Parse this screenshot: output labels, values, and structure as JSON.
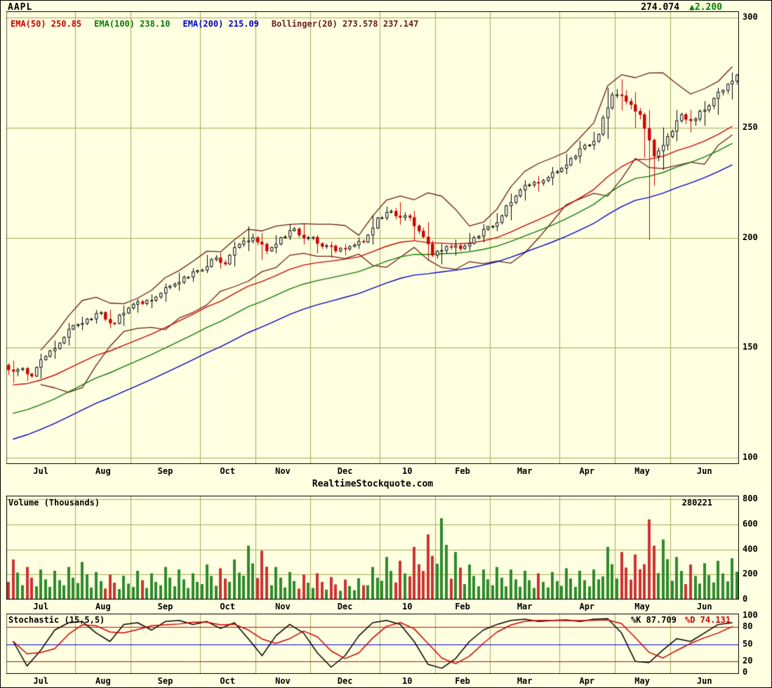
{
  "header": {
    "symbol": "AAPL",
    "price": "274.074",
    "change": "▲2.200"
  },
  "legend": [
    {
      "label": "EMA(50) 250.85",
      "color": "#cc0000"
    },
    {
      "label": "EMA(100) 238.10",
      "color": "#0b7a0b"
    },
    {
      "label": "EMA(200) 215.09",
      "color": "#0000cc"
    },
    {
      "label": "Bollinger(20) 273.578 237.147",
      "color": "#6a1b1b"
    }
  ],
  "watermark": "RealtimeStockquote.com",
  "volume_panel": {
    "title": "Volume (Thousands)",
    "current": "280221"
  },
  "stoch_panel": {
    "title": "Stochastic (15,5,5)",
    "k_label": "%K 87.709",
    "d_label": "%D 74.131"
  },
  "colors": {
    "background": "#ffffe1",
    "grid": "#a8a85c",
    "panel_border": "#000000",
    "candle_up_fill": "#ffffff",
    "candle_up_stroke": "#000000",
    "candle_down": "#cc0000",
    "volume_up": "#2e8b2e",
    "volume_down": "#cc3333",
    "ema50": "#cc0000",
    "ema100": "#0b7a0b",
    "ema200": "#0000cc",
    "bollinger": "#6a1b1b",
    "stoch_k": "#000000",
    "stoch_d": "#cc0000",
    "stoch_mid": "#0000cc",
    "stoch_bands": "#cc0000",
    "change_up": "#008000"
  },
  "chart_data": {
    "type": "candlestick",
    "symbol": "AAPL",
    "last_price": 274.074,
    "change": 2.2,
    "months": [
      "Jul",
      "Aug",
      "Sep",
      "Oct",
      "Nov",
      "Dec",
      "10",
      "Feb",
      "Mar",
      "Apr",
      "May",
      "Jun"
    ],
    "weeks_per_month": [
      5,
      4,
      5,
      4,
      4,
      5,
      4,
      4,
      5,
      4,
      4,
      5
    ],
    "price_axis_range": [
      100,
      300
    ],
    "price_ticks": [
      300,
      250,
      200,
      150,
      100
    ],
    "candles_ohlc_weekly": [
      [
        142,
        144,
        134,
        140
      ],
      [
        140,
        141,
        135,
        137
      ],
      [
        137,
        147,
        136,
        146
      ],
      [
        146,
        153,
        145,
        152
      ],
      [
        152,
        161,
        151,
        160
      ],
      [
        160,
        164,
        158,
        163
      ],
      [
        163,
        167,
        161,
        166
      ],
      [
        166,
        167,
        159,
        161
      ],
      [
        161,
        169,
        160,
        168
      ],
      [
        168,
        172,
        166,
        170
      ],
      [
        170,
        174,
        168,
        173
      ],
      [
        173,
        179,
        171,
        178
      ],
      [
        178,
        184,
        176,
        182
      ],
      [
        182,
        186,
        180,
        185
      ],
      [
        185,
        192,
        184,
        190
      ],
      [
        190,
        193,
        186,
        188
      ],
      [
        188,
        198,
        187,
        197
      ],
      [
        197,
        205,
        194,
        200
      ],
      [
        200,
        202,
        190,
        194
      ],
      [
        194,
        201,
        193,
        200
      ],
      [
        200,
        206,
        199,
        204
      ],
      [
        204,
        206,
        197,
        200
      ],
      [
        200,
        201,
        193,
        196
      ],
      [
        196,
        198,
        191,
        194
      ],
      [
        194,
        197,
        192,
        196
      ],
      [
        196,
        200,
        195,
        198
      ],
      [
        198,
        210,
        197,
        209
      ],
      [
        209,
        214,
        208,
        212
      ],
      [
        212,
        216,
        206,
        210
      ],
      [
        210,
        212,
        199,
        203
      ],
      [
        203,
        207,
        190,
        192
      ],
      [
        192,
        197,
        188,
        196
      ],
      [
        196,
        199,
        192,
        195
      ],
      [
        195,
        202,
        194,
        200
      ],
      [
        200,
        206,
        198,
        205
      ],
      [
        205,
        211,
        203,
        210
      ],
      [
        210,
        220,
        208,
        219
      ],
      [
        219,
        226,
        217,
        224
      ],
      [
        224,
        228,
        221,
        226
      ],
      [
        226,
        232,
        224,
        230
      ],
      [
        230,
        238,
        229,
        236
      ],
      [
        236,
        244,
        234,
        242
      ],
      [
        242,
        248,
        240,
        247
      ],
      [
        247,
        268,
        245,
        265
      ],
      [
        265,
        272,
        258,
        262
      ],
      [
        262,
        266,
        250,
        256
      ],
      [
        256,
        258,
        199,
        237
      ],
      [
        237,
        250,
        231,
        246
      ],
      [
        246,
        258,
        244,
        256
      ],
      [
        256,
        258,
        248,
        254
      ],
      [
        254,
        262,
        251,
        260
      ],
      [
        260,
        268,
        256,
        267
      ],
      [
        267,
        275,
        263,
        274
      ]
    ],
    "indicators": {
      "ema50": 250.85,
      "ema100": 238.1,
      "ema200": 215.09,
      "bollinger20_upper": 273.578,
      "bollinger20_lower": 237.147
    },
    "volume_axis_range": [
      0,
      800
    ],
    "volume_ticks": [
      800,
      600,
      400,
      200,
      0
    ],
    "volume_current_thousands": 280221,
    "volume_peak_thousands_weekly": [
      320,
      260,
      240,
      230,
      260,
      300,
      220,
      200,
      190,
      230,
      210,
      260,
      240,
      210,
      280,
      250,
      320,
      430,
      390,
      260,
      220,
      200,
      210,
      180,
      160,
      170,
      260,
      340,
      310,
      420,
      520,
      650,
      380,
      280,
      240,
      260,
      240,
      230,
      210,
      220,
      250,
      230,
      240,
      420,
      380,
      360,
      640,
      480,
      340,
      280,
      290,
      310,
      330
    ],
    "stoch_axis_range": [
      0,
      100
    ],
    "stoch_ticks": [
      100,
      80,
      50,
      20,
      0
    ],
    "stoch_k_current": 87.709,
    "stoch_d_current": 74.131,
    "stoch_bands": [
      80,
      50,
      20
    ],
    "stochastic_k_weekly": [
      55,
      12,
      40,
      75,
      88,
      90,
      70,
      55,
      85,
      88,
      75,
      90,
      92,
      85,
      90,
      78,
      88,
      60,
      30,
      65,
      85,
      70,
      35,
      10,
      30,
      65,
      88,
      92,
      85,
      55,
      15,
      8,
      25,
      55,
      75,
      85,
      92,
      94,
      90,
      92,
      93,
      90,
      94,
      95,
      70,
      20,
      18,
      40,
      60,
      55,
      70,
      85,
      88
    ]
  }
}
